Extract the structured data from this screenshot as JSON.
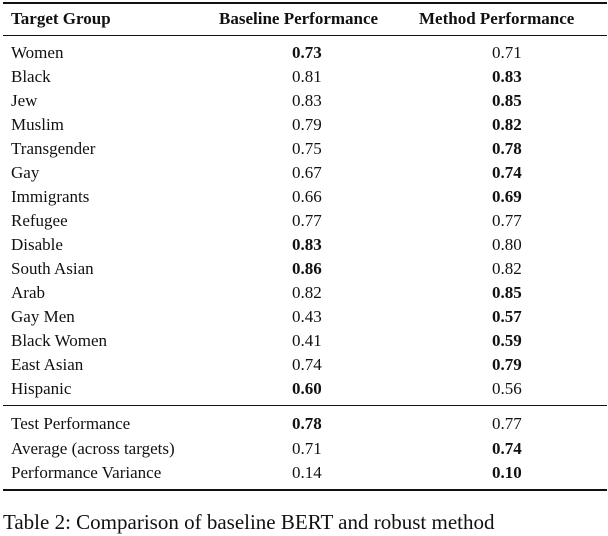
{
  "table": {
    "headers": [
      "Target Group",
      "Baseline Performance",
      "Method Performance"
    ],
    "rows": [
      {
        "group": "Women",
        "baseline": "0.73",
        "method": "0.71",
        "best": "baseline"
      },
      {
        "group": "Black",
        "baseline": "0.81",
        "method": "0.83",
        "best": "method"
      },
      {
        "group": "Jew",
        "baseline": "0.83",
        "method": "0.85",
        "best": "method"
      },
      {
        "group": "Muslim",
        "baseline": "0.79",
        "method": "0.82",
        "best": "method"
      },
      {
        "group": "Transgender",
        "baseline": "0.75",
        "method": "0.78",
        "best": "method"
      },
      {
        "group": "Gay",
        "baseline": "0.67",
        "method": "0.74",
        "best": "method"
      },
      {
        "group": "Immigrants",
        "baseline": "0.66",
        "method": "0.69",
        "best": "method"
      },
      {
        "group": "Refugee",
        "baseline": "0.77",
        "method": "0.77",
        "best": "none"
      },
      {
        "group": "Disable",
        "baseline": "0.83",
        "method": "0.80",
        "best": "baseline"
      },
      {
        "group": "South Asian",
        "baseline": "0.86",
        "method": "0.82",
        "best": "baseline"
      },
      {
        "group": "Arab",
        "baseline": "0.82",
        "method": "0.85",
        "best": "method"
      },
      {
        "group": "Gay Men",
        "baseline": "0.43",
        "method": "0.57",
        "best": "method"
      },
      {
        "group": "Black Women",
        "baseline": "0.41",
        "method": "0.59",
        "best": "method"
      },
      {
        "group": "East Asian",
        "baseline": "0.74",
        "method": "0.79",
        "best": "method"
      },
      {
        "group": "Hispanic",
        "baseline": "0.60",
        "method": "0.56",
        "best": "baseline"
      }
    ],
    "summary_rows": [
      {
        "group": "Test Performance",
        "baseline": "0.78",
        "method": "0.77",
        "best": "baseline"
      },
      {
        "group": "Average (across targets)",
        "baseline": "0.71",
        "method": "0.74",
        "best": "method"
      },
      {
        "group": "Performance Variance",
        "baseline": "0.14",
        "method": "0.10",
        "best": "method"
      }
    ]
  },
  "caption": "Table 2: Comparison of baseline BERT and robust method"
}
